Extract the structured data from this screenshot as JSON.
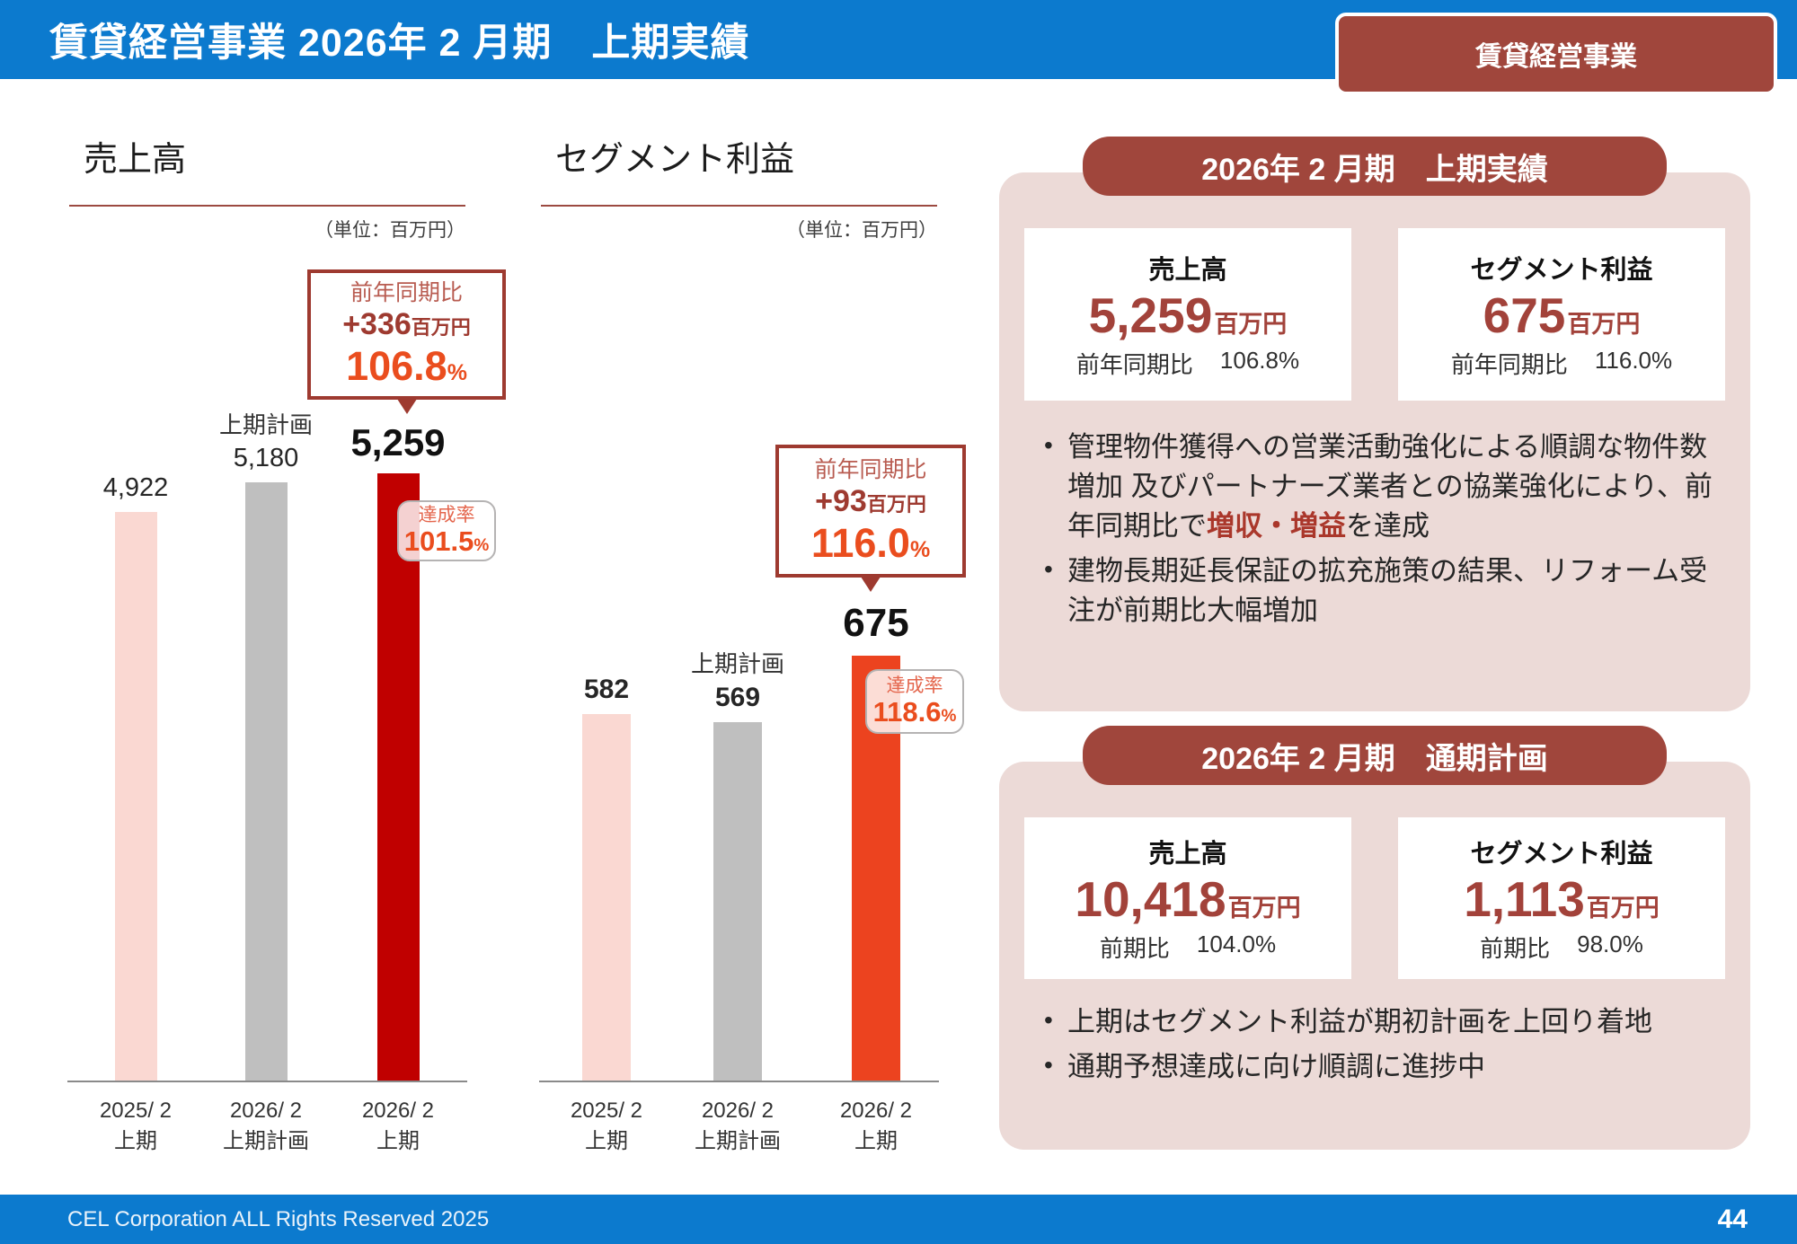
{
  "header": {
    "title": "賃貸経営事業 2026年 2 月期　上期実績",
    "badge": "賃貸経営事業"
  },
  "footer": {
    "copyright": "CEL Corporation ALL Rights Reserved 2025",
    "page_number": "44"
  },
  "colors": {
    "header_blue": "#0c7ace",
    "brand_red": "#a0463c",
    "panel_pink": "#ecdad7",
    "accent_orange": "#ea4d1e",
    "bar_pink": "#fad8d2",
    "bar_gray": "#bfbfbf",
    "bar_dark_red": "#c00000",
    "bar_orange": "#ec431f"
  },
  "chart_data": [
    {
      "type": "bar",
      "title": "売上高",
      "unit_note": "（単位：百万円）",
      "categories": [
        "2025/2 上期",
        "2026/2 上期計画",
        "2026/2 上期"
      ],
      "values": [
        4922,
        5180,
        5259
      ],
      "bar_colors": [
        "#fad8d2",
        "#bfbfbf",
        "#c00000"
      ],
      "value_labels": [
        "4,922",
        "5,180",
        "5,259"
      ],
      "ylim": [
        0,
        5259
      ],
      "grid": false,
      "legend": "none",
      "callout": {
        "label": "前年同期比",
        "diff": "+336",
        "diff_unit": "百万円",
        "pct": "106.8",
        "pct_unit": "%"
      },
      "achievement": {
        "label": "達成率",
        "pct": "101.5",
        "pct_unit": "%"
      }
    },
    {
      "type": "bar",
      "title": "セグメント利益",
      "unit_note": "（単位：百万円）",
      "categories": [
        "2025/2 上期",
        "2026/2 上期計画",
        "2026/2 上期"
      ],
      "values": [
        582,
        569,
        675
      ],
      "bar_colors": [
        "#fad8d2",
        "#bfbfbf",
        "#ec431f"
      ],
      "value_labels": [
        "582",
        "569",
        "675"
      ],
      "ylim": [
        0,
        675
      ],
      "grid": false,
      "legend": "none",
      "callout": {
        "label": "前年同期比",
        "diff": "+93",
        "diff_unit": "百万円",
        "pct": "116.0",
        "pct_unit": "%"
      },
      "achievement": {
        "label": "達成率",
        "pct": "118.6",
        "pct_unit": "%"
      }
    }
  ],
  "charts": [
    {
      "title": "売上高",
      "unit": "（単位：百万円）",
      "bars": [
        {
          "top_label": "",
          "value_label": "4,922",
          "cat1": "2025/ 2",
          "cat2": "上期"
        },
        {
          "top_label": "上期計画",
          "value_label": "5,180",
          "cat1": "2026/ 2",
          "cat2": "上期計画"
        },
        {
          "top_label": "",
          "value_label": "5,259",
          "cat1": "2026/ 2",
          "cat2": "上期"
        }
      ]
    },
    {
      "title": "セグメント利益",
      "unit": "（単位：百万円）",
      "bars": [
        {
          "top_label": "",
          "value_label": "582",
          "cat1": "2025/ 2",
          "cat2": "上期"
        },
        {
          "top_label": "上期計画",
          "value_label": "569",
          "cat1": "2026/ 2",
          "cat2": "上期計画"
        },
        {
          "top_label": "",
          "value_label": "675",
          "cat1": "2026/ 2",
          "cat2": "上期"
        }
      ]
    }
  ],
  "panels": [
    {
      "heading": "2026年 2 月期　上期実績",
      "cards": [
        {
          "title": "売上高",
          "value": "5,259",
          "unit": "百万円",
          "ratio_label": "前年同期比",
          "ratio_value": "106.8%"
        },
        {
          "title": "セグメント利益",
          "value": "675",
          "unit": "百万円",
          "ratio_label": "前年同期比",
          "ratio_value": "116.0%"
        }
      ],
      "bullets": [
        {
          "pre": "管理物件獲得への営業活動強化による順調な物件数増加 及びパートナーズ業者との協業強化により、前年同期比で",
          "em": "増収・増益",
          "post": "を達成"
        },
        {
          "pre": "建物長期延長保証の拡充施策の結果、リフォーム受注が前期比大幅増加",
          "em": "",
          "post": ""
        }
      ]
    },
    {
      "heading": "2026年 2 月期　通期計画",
      "cards": [
        {
          "title": "売上高",
          "value": "10,418",
          "unit": "百万円",
          "ratio_label": "前期比",
          "ratio_value": "104.0%"
        },
        {
          "title": "セグメント利益",
          "value": "1,113",
          "unit": "百万円",
          "ratio_label": "前期比",
          "ratio_value": "98.0%"
        }
      ],
      "bullets": [
        {
          "pre": "上期はセグメント利益が期初計画を上回り着地",
          "em": "",
          "post": ""
        },
        {
          "pre": "通期予想達成に向け順調に進捗中",
          "em": "",
          "post": ""
        }
      ]
    }
  ]
}
